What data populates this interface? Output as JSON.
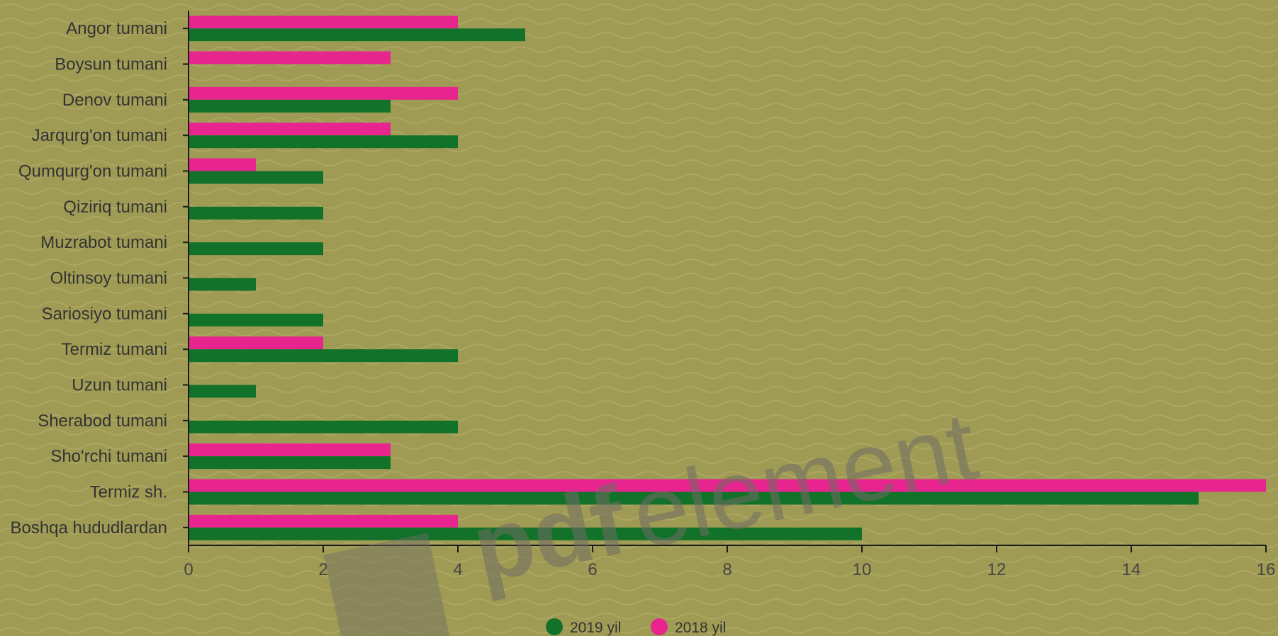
{
  "chart_data": {
    "type": "bar",
    "orientation": "horizontal",
    "categories": [
      "Angor tumani",
      "Boysun tumani",
      "Denov tumani",
      "Jarqurg'on tumani",
      "Qumqurg'on tumani",
      "Qiziriq tumani",
      "Muzrabot tumani",
      "Oltinsoy tumani",
      "Sariosiyo tumani",
      "Termiz tumani",
      "Uzun tumani",
      "Sherabod tumani",
      "Sho'rchi tumani",
      "Termiz sh.",
      "Boshqa hududlardan"
    ],
    "series": [
      {
        "name": "2018 yil",
        "color": "#e8258f",
        "values": [
          4,
          3,
          4,
          3,
          1,
          0,
          0,
          0,
          0,
          2,
          0,
          0,
          3,
          16,
          4
        ]
      },
      {
        "name": "2019 yil",
        "color": "#12722a",
        "values": [
          5,
          0,
          3,
          4,
          2,
          2,
          2,
          1,
          2,
          4,
          1,
          4,
          3,
          15,
          10
        ]
      }
    ],
    "xlim": [
      0,
      16
    ],
    "xticks": [
      "0",
      "2",
      "4",
      "6",
      "8",
      "10",
      "12",
      "14",
      "16"
    ],
    "grid": false,
    "legend_position": "bottom",
    "legend_order": [
      "2019 yil",
      "2018 yil"
    ]
  },
  "watermark": {
    "text_bold": "pdf",
    "text_light": "element",
    "icon": "pdfelement-logo-icon"
  },
  "colors": {
    "background": "#a09b54",
    "axis": "#1a1a1a"
  }
}
